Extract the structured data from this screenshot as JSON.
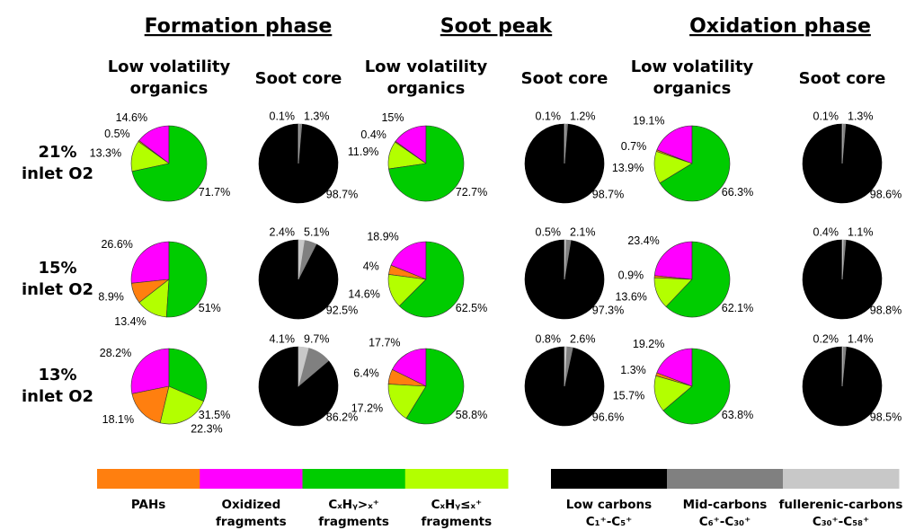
{
  "phases": [
    "Formation phase",
    "Soot peak",
    "Oxidation phase"
  ],
  "pie_titles": [
    [
      "Low volatility",
      "organics"
    ],
    [
      "Soot core"
    ]
  ],
  "rows": [
    [
      "21%",
      "inlet O2"
    ],
    [
      "15%",
      "inlet O2"
    ],
    [
      "13%",
      "inlet O2"
    ]
  ],
  "legends": [
    {
      "colors": [
        "#ff7f0f",
        "#ff00ff",
        "#00cc00",
        "#b3ff00"
      ],
      "labels": [
        [
          "PAHs"
        ],
        [
          "Oxidized",
          "fragments"
        ],
        [
          "CₓHᵧ>ₓ⁺",
          "fragments"
        ],
        [
          "CₓHᵧ≤ₓ⁺",
          "fragments"
        ]
      ]
    },
    {
      "colors": [
        "#000000",
        "#808080",
        "#c8c8c8"
      ],
      "labels": [
        [
          "Low carbons",
          "C₁⁺-C₅⁺"
        ],
        [
          "Mid-carbons",
          "C₆⁺-C₃₀⁺"
        ],
        [
          "fullerenic-carbons",
          "C₃₀⁺-C₅₈⁺"
        ]
      ]
    }
  ],
  "chart_data": [
    {
      "type": "pie",
      "values": [
        14.6,
        0.5,
        13.3,
        71.7
      ],
      "value_labels": [
        "14.6%",
        "0.5%",
        "13.3%",
        "71.7%"
      ],
      "colors": [
        "#ff00ff",
        "#ff7f0f",
        "#b3ff00",
        "#00cc00"
      ]
    },
    {
      "type": "pie",
      "values": [
        98.7,
        1.3,
        0.1
      ],
      "value_labels": [
        "98.7%",
        "1.3%",
        "0.1%"
      ],
      "colors": [
        "#000000",
        "#808080",
        "#c8c8c8"
      ]
    },
    {
      "type": "pie",
      "values": [
        15,
        0.4,
        11.9,
        72.7
      ],
      "value_labels": [
        "15%",
        "0.4%",
        "11.9%",
        "72.7%"
      ],
      "colors": [
        "#ff00ff",
        "#ff7f0f",
        "#b3ff00",
        "#00cc00"
      ]
    },
    {
      "type": "pie",
      "values": [
        98.7,
        1.2,
        0.1
      ],
      "value_labels": [
        "98.7%",
        "1.2%",
        "0.1%"
      ],
      "colors": [
        "#000000",
        "#808080",
        "#c8c8c8"
      ]
    },
    {
      "type": "pie",
      "values": [
        19.1,
        0.7,
        13.9,
        66.3
      ],
      "value_labels": [
        "19.1%",
        "0.7%",
        "13.9%",
        "66.3%"
      ],
      "colors": [
        "#ff00ff",
        "#ff7f0f",
        "#b3ff00",
        "#00cc00"
      ]
    },
    {
      "type": "pie",
      "values": [
        98.6,
        1.3,
        0.1
      ],
      "value_labels": [
        "98.6%",
        "1.3%",
        "0.1%"
      ],
      "colors": [
        "#000000",
        "#808080",
        "#c8c8c8"
      ]
    },
    {
      "type": "pie",
      "values": [
        26.6,
        8.9,
        13.4,
        51
      ],
      "value_labels": [
        "26.6%",
        "8.9%",
        "13.4%",
        "51%"
      ],
      "colors": [
        "#ff00ff",
        "#ff7f0f",
        "#b3ff00",
        "#00cc00"
      ]
    },
    {
      "type": "pie",
      "values": [
        92.5,
        5.1,
        2.4
      ],
      "value_labels": [
        "92.5%",
        "5.1%",
        "2.4%"
      ],
      "colors": [
        "#000000",
        "#808080",
        "#c8c8c8"
      ]
    },
    {
      "type": "pie",
      "values": [
        18.9,
        4,
        14.6,
        62.5
      ],
      "value_labels": [
        "18.9%",
        "4%",
        "14.6%",
        "62.5%"
      ],
      "colors": [
        "#ff00ff",
        "#ff7f0f",
        "#b3ff00",
        "#00cc00"
      ]
    },
    {
      "type": "pie",
      "values": [
        97.3,
        2.1,
        0.5
      ],
      "value_labels": [
        "97.3%",
        "2.1%",
        "0.5%"
      ],
      "colors": [
        "#000000",
        "#808080",
        "#c8c8c8"
      ]
    },
    {
      "type": "pie",
      "values": [
        23.4,
        0.9,
        13.6,
        62.1
      ],
      "value_labels": [
        "23.4%",
        "0.9%",
        "13.6%",
        "62.1%"
      ],
      "colors": [
        "#ff00ff",
        "#ff7f0f",
        "#b3ff00",
        "#00cc00"
      ]
    },
    {
      "type": "pie",
      "values": [
        98.8,
        1.1,
        0.4
      ],
      "value_labels": [
        "98.8%",
        "1.1%",
        "0.4%"
      ],
      "colors": [
        "#000000",
        "#808080",
        "#c8c8c8"
      ]
    },
    {
      "type": "pie",
      "values": [
        28.2,
        18.1,
        22.3,
        31.5
      ],
      "value_labels": [
        "28.2%",
        "18.1%",
        "22.3%",
        "31.5%"
      ],
      "colors": [
        "#ff00ff",
        "#ff7f0f",
        "#b3ff00",
        "#00cc00"
      ]
    },
    {
      "type": "pie",
      "values": [
        86.2,
        9.7,
        4.1
      ],
      "value_labels": [
        "86.2%",
        "9.7%",
        "4.1%"
      ],
      "colors": [
        "#000000",
        "#808080",
        "#c8c8c8"
      ]
    },
    {
      "type": "pie",
      "values": [
        17.7,
        6.4,
        17.2,
        58.8
      ],
      "value_labels": [
        "17.7%",
        "6.4%",
        "17.2%",
        "58.8%"
      ],
      "colors": [
        "#ff00ff",
        "#ff7f0f",
        "#b3ff00",
        "#00cc00"
      ]
    },
    {
      "type": "pie",
      "values": [
        96.6,
        2.6,
        0.8
      ],
      "value_labels": [
        "96.6%",
        "2.6%",
        "0.8%"
      ],
      "colors": [
        "#000000",
        "#808080",
        "#c8c8c8"
      ]
    },
    {
      "type": "pie",
      "values": [
        19.2,
        1.3,
        15.7,
        63.8
      ],
      "value_labels": [
        "19.2%",
        "1.3%",
        "15.7%",
        "63.8%"
      ],
      "colors": [
        "#ff00ff",
        "#ff7f0f",
        "#b3ff00",
        "#00cc00"
      ]
    },
    {
      "type": "pie",
      "values": [
        98.5,
        1.4,
        0.2
      ],
      "value_labels": [
        "98.5%",
        "1.4%",
        "0.2%"
      ],
      "colors": [
        "#000000",
        "#808080",
        "#c8c8c8"
      ]
    }
  ]
}
